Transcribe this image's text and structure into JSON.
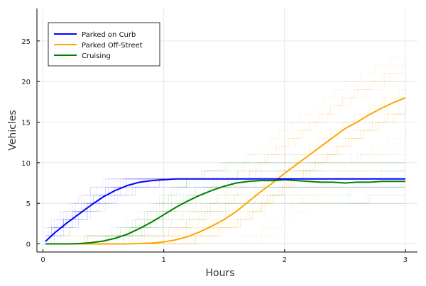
{
  "chart_data": {
    "type": "line",
    "title": "",
    "xlabel": "Hours",
    "ylabel": "Vehicles",
    "xlim": [
      -0.05,
      3.1
    ],
    "ylim": [
      -1,
      29
    ],
    "xticks": [
      0,
      1,
      2,
      3
    ],
    "xtick_labels": [
      "0",
      "1",
      "2",
      "3"
    ],
    "yticks": [
      0,
      5,
      10,
      15,
      20,
      25
    ],
    "ytick_labels": [
      "0",
      "5",
      "10",
      "15",
      "20",
      "25"
    ],
    "grid": true,
    "legend_position": "top-left",
    "x": [
      0.02,
      0.1,
      0.2,
      0.3,
      0.4,
      0.5,
      0.6,
      0.7,
      0.8,
      0.9,
      1.0,
      1.1,
      1.2,
      1.3,
      1.4,
      1.5,
      1.6,
      1.7,
      1.8,
      1.9,
      2.0,
      2.1,
      2.2,
      2.3,
      2.4,
      2.5,
      2.6,
      2.7,
      2.8,
      2.9,
      3.0
    ],
    "series": [
      {
        "name": "Parked on Curb",
        "color": "#0000ff",
        "values": [
          0.3,
          1.4,
          2.6,
          3.7,
          4.8,
          5.8,
          6.6,
          7.2,
          7.6,
          7.8,
          7.9,
          8.0,
          8.0,
          8.0,
          8.0,
          8.0,
          8.0,
          8.0,
          8.0,
          8.0,
          8.0,
          8.0,
          8.0,
          8.0,
          8.0,
          8.0,
          8.0,
          8.0,
          8.0,
          8.0,
          8.0
        ]
      },
      {
        "name": "Parked Off-Street",
        "color": "#ffa500",
        "values": [
          0,
          0,
          0,
          0,
          0,
          0,
          0,
          0,
          0.05,
          0.1,
          0.25,
          0.5,
          0.9,
          1.5,
          2.2,
          3.0,
          4.0,
          5.2,
          6.4,
          7.5,
          8.7,
          9.8,
          10.9,
          12.0,
          13.1,
          14.2,
          15.0,
          15.9,
          16.7,
          17.4,
          18.0
        ]
      },
      {
        "name": "Cruising",
        "color": "#008000",
        "values": [
          0,
          0,
          0,
          0.05,
          0.15,
          0.35,
          0.7,
          1.2,
          1.9,
          2.7,
          3.6,
          4.5,
          5.3,
          6.0,
          6.6,
          7.1,
          7.5,
          7.7,
          7.8,
          7.8,
          7.9,
          7.8,
          7.7,
          7.6,
          7.6,
          7.5,
          7.6,
          7.6,
          7.7,
          7.7,
          7.7
        ]
      }
    ]
  }
}
